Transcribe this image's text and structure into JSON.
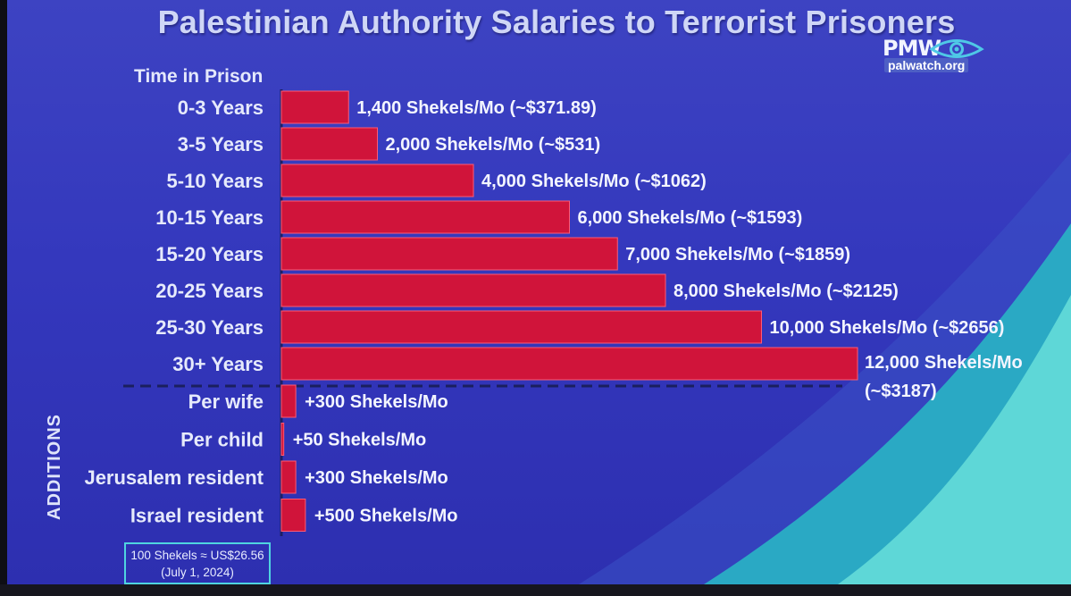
{
  "title": "Palestinian Authority Salaries to Terrorist Prisoners",
  "logo": {
    "mark": "PMW",
    "icon": "eye-icon",
    "url": "palwatch.org"
  },
  "additions_label": "ADDITIONS",
  "exchange_note": {
    "line1": "100 Shekels ≈ US$26.56",
    "line2": "(July 1, 2024)"
  },
  "colors": {
    "bar": "#d0143a",
    "bar_border": "#ff5a72",
    "background": "#3438bd",
    "accent_teal": "#3fc3cb",
    "divider": "#1b1f5e"
  },
  "chart_data": {
    "type": "bar",
    "orientation": "horizontal",
    "category_header": "Time in Prison",
    "unit": "Shekels/Mo",
    "grid": false,
    "legend": "none",
    "xlim": [
      0,
      12000
    ],
    "categories": [
      "0-3 Years",
      "3-5 Years",
      "5-10 Years",
      "10-15 Years",
      "15-20 Years",
      "20-25 Years",
      "25-30 Years",
      "30+ Years"
    ],
    "values": [
      1400,
      2000,
      4000,
      6000,
      7000,
      8000,
      10000,
      12000
    ],
    "data_labels": [
      "1,400 Shekels/Mo (~$371.89)",
      "2,000 Shekels/Mo (~$531)",
      "4,000 Shekels/Mo (~$1062)",
      "6,000 Shekels/Mo (~$1593)",
      "7,000 Shekels/Mo (~$1859)",
      "8,000 Shekels/Mo (~$2125)",
      "10,000 Shekels/Mo (~$2656)",
      [
        "12,000 Shekels/Mo",
        "(~$3187)"
      ]
    ],
    "additions": {
      "categories": [
        "Per wife",
        "Per child",
        "Jerusalem resident",
        "Israel resident"
      ],
      "values": [
        300,
        50,
        300,
        500
      ],
      "data_labels": [
        "+300 Shekels/Mo",
        "+50 Shekels/Mo",
        "+300 Shekels/Mo",
        "+500 Shekels/Mo"
      ]
    }
  }
}
